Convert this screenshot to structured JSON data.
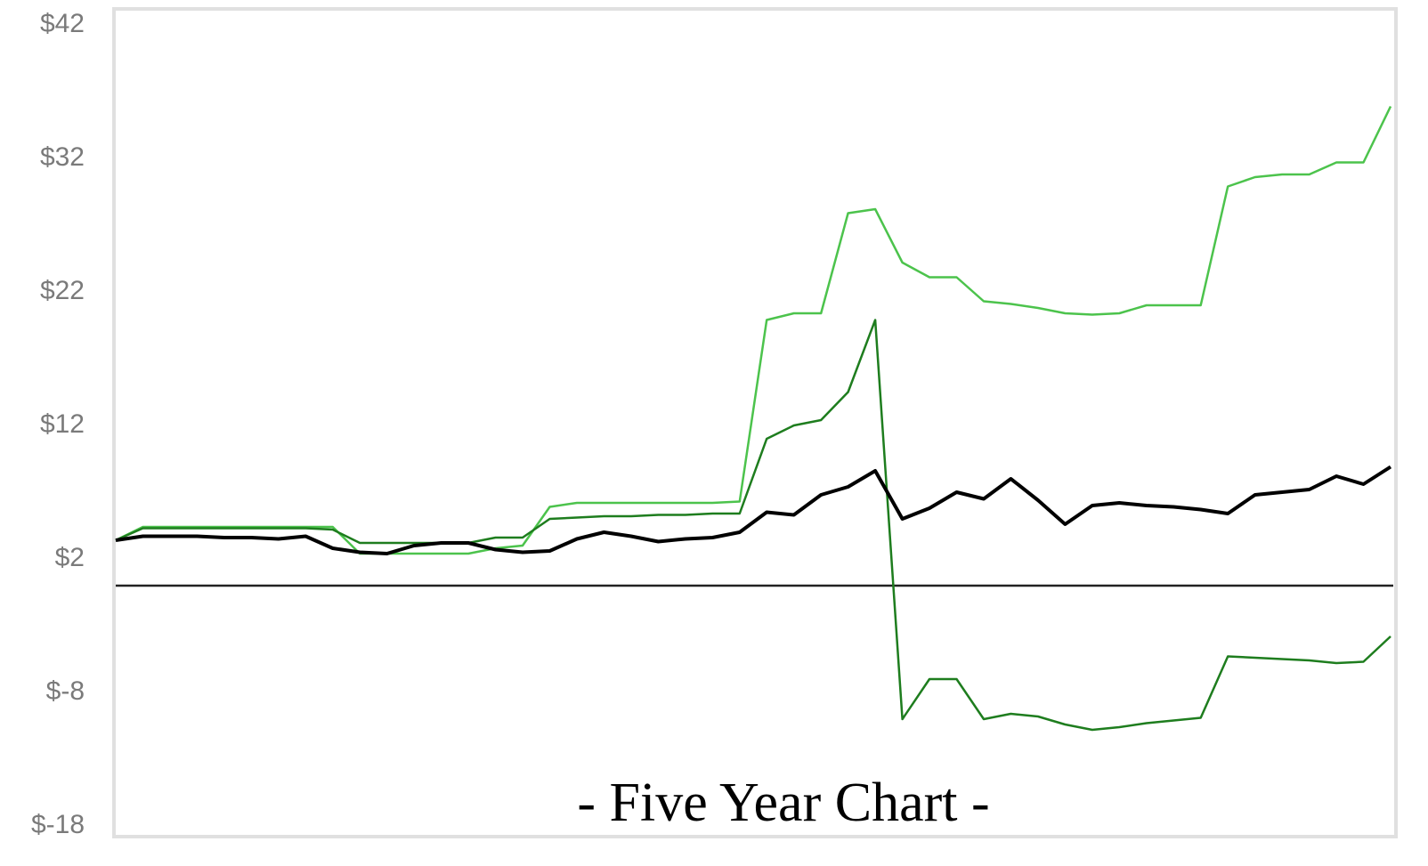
{
  "chart_data": {
    "type": "line",
    "title": "- Five Year Chart -",
    "ylim": [
      -18,
      42
    ],
    "yticks": [
      {
        "value": 42,
        "label": "$42"
      },
      {
        "value": 32,
        "label": "$32"
      },
      {
        "value": 22,
        "label": "$22"
      },
      {
        "value": 12,
        "label": "$12"
      },
      {
        "value": 2,
        "label": "$2"
      },
      {
        "value": -8,
        "label": "$-8"
      },
      {
        "value": -18,
        "label": "$-18"
      }
    ],
    "hline": 0,
    "series": [
      {
        "color": "#4cc34c",
        "values": [
          3.4,
          4.4,
          4.4,
          4.4,
          4.4,
          4.4,
          4.4,
          4.4,
          4.4,
          2.4,
          2.4,
          2.4,
          2.4,
          2.4,
          2.8,
          3.0,
          5.9,
          6.2,
          6.2,
          6.2,
          6.2,
          6.2,
          6.2,
          6.3,
          19.9,
          20.4,
          20.4,
          27.9,
          28.2,
          24.2,
          23.1,
          23.1,
          21.3,
          21.1,
          20.8,
          20.4,
          20.3,
          20.4,
          21.0,
          21.0,
          21.0,
          29.9,
          30.6,
          30.8,
          30.8,
          31.7,
          31.7,
          35.9
        ]
      },
      {
        "color": "#1e7d1e",
        "values": [
          3.4,
          4.3,
          4.3,
          4.3,
          4.3,
          4.3,
          4.3,
          4.3,
          4.2,
          3.2,
          3.2,
          3.2,
          3.2,
          3.2,
          3.6,
          3.6,
          5.0,
          5.1,
          5.2,
          5.2,
          5.3,
          5.3,
          5.4,
          5.4,
          11.0,
          12.0,
          12.4,
          14.5,
          19.9,
          -10.0,
          -7.0,
          -7.0,
          -10.0,
          -9.6,
          -9.8,
          -10.4,
          -10.8,
          -10.6,
          -10.3,
          -10.1,
          -9.9,
          -5.3,
          -5.4,
          -5.5,
          -5.6,
          -5.8,
          -5.7,
          -3.8
        ]
      },
      {
        "color": "#000000",
        "values": [
          3.4,
          3.7,
          3.7,
          3.7,
          3.6,
          3.6,
          3.5,
          3.7,
          2.8,
          2.5,
          2.4,
          3.0,
          3.2,
          3.2,
          2.7,
          2.5,
          2.6,
          3.5,
          4.0,
          3.7,
          3.3,
          3.5,
          3.6,
          4.0,
          5.5,
          5.3,
          6.8,
          7.4,
          8.6,
          5.0,
          5.8,
          7.0,
          6.5,
          8.0,
          6.4,
          4.6,
          6.0,
          6.2,
          6.0,
          5.9,
          5.7,
          5.4,
          6.8,
          7.0,
          7.2,
          8.2,
          7.6,
          8.9
        ]
      }
    ]
  }
}
